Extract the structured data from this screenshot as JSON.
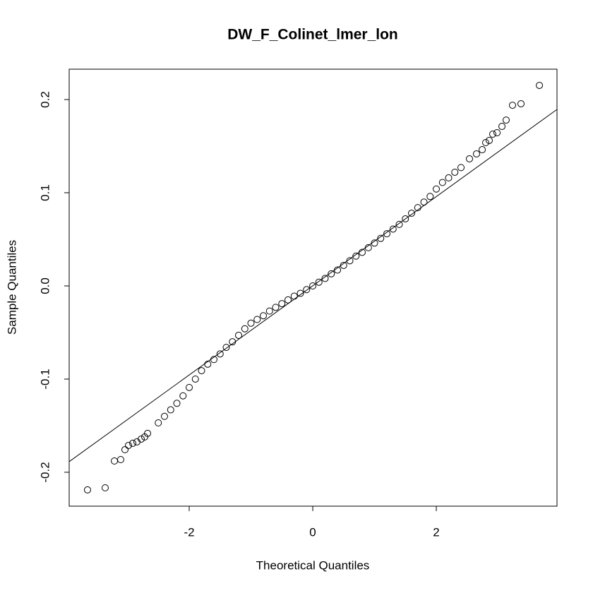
{
  "chart_data": {
    "type": "scatter",
    "title": "DW_F_Colinet_lmer_lon",
    "xlabel": "Theoretical Quantiles",
    "ylabel": "Sample Quantiles",
    "xlim": [
      -3.943,
      3.954
    ],
    "ylim": [
      -0.2364,
      0.2326
    ],
    "xticks": [
      -2,
      0,
      2
    ],
    "yticks": [
      -0.2,
      -0.1,
      {
        "value": 0,
        "label": "0.0"
      },
      0.1,
      0.2
    ],
    "x": [
      -3.646,
      -3.36,
      -3.211,
      -3.109,
      -3.04,
      -2.983,
      -2.914,
      -2.846,
      -2.777,
      -2.72,
      -2.674,
      -2.5,
      -2.4,
      -2.3,
      -2.2,
      -2.1,
      -2.0,
      -1.9,
      -1.8,
      -1.7,
      -1.6,
      -1.5,
      -1.4,
      -1.3,
      -1.2,
      -1.1,
      -1.0,
      -0.9,
      -0.8,
      -0.7,
      -0.6,
      -0.5,
      -0.4,
      -0.3,
      -0.2,
      -0.1,
      0,
      0.1,
      0.2,
      0.3,
      0.4,
      0.5,
      0.6,
      0.7,
      0.8,
      0.9,
      1.0,
      1.1,
      1.2,
      1.3,
      1.4,
      1.5,
      1.6,
      1.7,
      1.8,
      1.9,
      2.0,
      2.1,
      2.2,
      2.3,
      2.4,
      2.537,
      2.651,
      2.743,
      2.8,
      2.857,
      2.914,
      2.983,
      3.063,
      3.131,
      3.234,
      3.371,
      3.669
    ],
    "y": [
      -0.2189,
      -0.2167,
      -0.1879,
      -0.1864,
      -0.1758,
      -0.1712,
      -0.1689,
      -0.1674,
      -0.1644,
      -0.1621,
      -0.1583,
      -0.147,
      -0.14,
      -0.133,
      -0.126,
      -0.118,
      -0.109,
      -0.1,
      -0.091,
      -0.084,
      -0.079,
      -0.073,
      -0.066,
      -0.06,
      -0.053,
      -0.046,
      -0.04,
      -0.036,
      -0.032,
      -0.027,
      -0.023,
      -0.019,
      -0.015,
      -0.011,
      -0.008,
      -0.004,
      0,
      0.004,
      0.008,
      0.013,
      0.017,
      0.022,
      0.027,
      0.032,
      0.036,
      0.041,
      0.046,
      0.051,
      0.056,
      0.061,
      0.066,
      0.072,
      0.078,
      0.084,
      0.09,
      0.096,
      0.104,
      0.111,
      0.116,
      0.122,
      0.127,
      0.1364,
      0.1417,
      0.1462,
      0.1538,
      0.1561,
      0.1629,
      0.1644,
      0.1712,
      0.178,
      0.1939,
      0.1955,
      0.2152
    ],
    "color": "#000000",
    "reference_line": {
      "x": [
        -3.943,
        3.954
      ],
      "y": [
        -0.1886,
        0.1894
      ]
    }
  }
}
